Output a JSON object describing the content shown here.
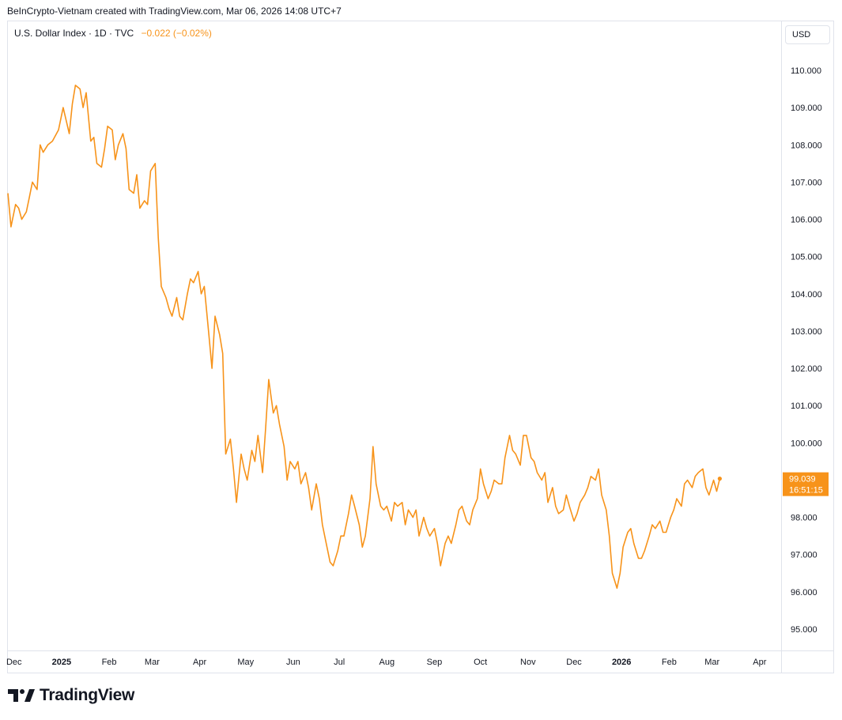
{
  "header": {
    "credit": "BeInCrypto-Vietnam created with TradingView.com, Mar 06, 2026 14:08 UTC+7"
  },
  "legend": {
    "symbol": "U.S. Dollar Index · 1D · TVC",
    "change": "−0.022 (−0.02%)"
  },
  "currency_button": "USD",
  "price_label": {
    "value": "99.039",
    "countdown": "16:51:15",
    "color": "#f7931a"
  },
  "brand": {
    "name": "TradingView",
    "icon": "tradingview-logo-icon"
  },
  "colors": {
    "line": "#f7931a",
    "axis_text": "#131722",
    "border": "#e0e3eb"
  },
  "chart_data": {
    "type": "line",
    "title": "U.S. Dollar Index · 1D · TVC",
    "xlabel": "",
    "ylabel": "",
    "ylim": [
      94.5,
      110.8
    ],
    "xlim": [
      "2024-11-27",
      "2026-04-15"
    ],
    "y_ticks": [
      "95.000",
      "96.000",
      "97.000",
      "98.000",
      "99.000",
      "100.000",
      "101.000",
      "102.000",
      "103.000",
      "104.000",
      "105.000",
      "106.000",
      "107.000",
      "108.000",
      "109.000",
      "110.000"
    ],
    "x_ticks": [
      {
        "date": "2024-12-01",
        "label": "Dec",
        "bold": false
      },
      {
        "date": "2025-01-01",
        "label": "2025",
        "bold": true
      },
      {
        "date": "2025-02-01",
        "label": "Feb",
        "bold": false
      },
      {
        "date": "2025-03-01",
        "label": "Mar",
        "bold": false
      },
      {
        "date": "2025-04-01",
        "label": "Apr",
        "bold": false
      },
      {
        "date": "2025-05-01",
        "label": "May",
        "bold": false
      },
      {
        "date": "2025-06-01",
        "label": "Jun",
        "bold": false
      },
      {
        "date": "2025-07-01",
        "label": "Jul",
        "bold": false
      },
      {
        "date": "2025-08-01",
        "label": "Aug",
        "bold": false
      },
      {
        "date": "2025-09-01",
        "label": "Sep",
        "bold": false
      },
      {
        "date": "2025-10-01",
        "label": "Oct",
        "bold": false
      },
      {
        "date": "2025-11-01",
        "label": "Nov",
        "bold": false
      },
      {
        "date": "2025-12-01",
        "label": "Dec",
        "bold": false
      },
      {
        "date": "2026-01-01",
        "label": "2026",
        "bold": true
      },
      {
        "date": "2026-02-01",
        "label": "Feb",
        "bold": false
      },
      {
        "date": "2026-03-01",
        "label": "Mar",
        "bold": false
      },
      {
        "date": "2026-04-01",
        "label": "Apr",
        "bold": false
      }
    ],
    "grid": false,
    "last_value": 99.039,
    "series": [
      {
        "color": "#f7931a",
        "points": [
          [
            "2024-11-27",
            106.7
          ],
          [
            "2024-11-29",
            105.8
          ],
          [
            "2024-12-02",
            106.4
          ],
          [
            "2024-12-04",
            106.3
          ],
          [
            "2024-12-06",
            106.0
          ],
          [
            "2024-12-09",
            106.2
          ],
          [
            "2024-12-11",
            106.6
          ],
          [
            "2024-12-13",
            107.0
          ],
          [
            "2024-12-16",
            106.8
          ],
          [
            "2024-12-18",
            108.0
          ],
          [
            "2024-12-20",
            107.8
          ],
          [
            "2024-12-23",
            108.0
          ],
          [
            "2024-12-26",
            108.1
          ],
          [
            "2024-12-30",
            108.4
          ],
          [
            "2025-01-02",
            109.0
          ],
          [
            "2025-01-06",
            108.3
          ],
          [
            "2025-01-08",
            109.1
          ],
          [
            "2025-01-10",
            109.6
          ],
          [
            "2025-01-13",
            109.5
          ],
          [
            "2025-01-15",
            109.0
          ],
          [
            "2025-01-17",
            109.4
          ],
          [
            "2025-01-20",
            108.1
          ],
          [
            "2025-01-22",
            108.2
          ],
          [
            "2025-01-24",
            107.5
          ],
          [
            "2025-01-27",
            107.4
          ],
          [
            "2025-01-29",
            107.9
          ],
          [
            "2025-01-31",
            108.5
          ],
          [
            "2025-02-03",
            108.4
          ],
          [
            "2025-02-05",
            107.6
          ],
          [
            "2025-02-07",
            108.0
          ],
          [
            "2025-02-10",
            108.3
          ],
          [
            "2025-02-12",
            107.9
          ],
          [
            "2025-02-14",
            106.8
          ],
          [
            "2025-02-17",
            106.7
          ],
          [
            "2025-02-19",
            107.2
          ],
          [
            "2025-02-21",
            106.3
          ],
          [
            "2025-02-24",
            106.5
          ],
          [
            "2025-02-26",
            106.4
          ],
          [
            "2025-02-28",
            107.3
          ],
          [
            "2025-03-03",
            107.5
          ],
          [
            "2025-03-05",
            105.5
          ],
          [
            "2025-03-07",
            104.2
          ],
          [
            "2025-03-10",
            103.9
          ],
          [
            "2025-03-12",
            103.6
          ],
          [
            "2025-03-14",
            103.4
          ],
          [
            "2025-03-17",
            103.9
          ],
          [
            "2025-03-19",
            103.4
          ],
          [
            "2025-03-21",
            103.3
          ],
          [
            "2025-03-24",
            104.0
          ],
          [
            "2025-03-26",
            104.4
          ],
          [
            "2025-03-28",
            104.3
          ],
          [
            "2025-03-31",
            104.6
          ],
          [
            "2025-04-02",
            104.0
          ],
          [
            "2025-04-04",
            104.2
          ],
          [
            "2025-04-07",
            102.9
          ],
          [
            "2025-04-09",
            102.0
          ],
          [
            "2025-04-11",
            103.4
          ],
          [
            "2025-04-14",
            102.9
          ],
          [
            "2025-04-16",
            102.4
          ],
          [
            "2025-04-18",
            99.7
          ],
          [
            "2025-04-21",
            100.1
          ],
          [
            "2025-04-23",
            99.3
          ],
          [
            "2025-04-25",
            98.4
          ],
          [
            "2025-04-28",
            99.7
          ],
          [
            "2025-04-30",
            99.3
          ],
          [
            "2025-05-02",
            99.0
          ],
          [
            "2025-05-05",
            99.8
          ],
          [
            "2025-05-07",
            99.5
          ],
          [
            "2025-05-09",
            100.2
          ],
          [
            "2025-05-12",
            99.2
          ],
          [
            "2025-05-14",
            100.4
          ],
          [
            "2025-05-16",
            101.7
          ],
          [
            "2025-05-19",
            100.8
          ],
          [
            "2025-05-21",
            101.0
          ],
          [
            "2025-05-23",
            100.5
          ],
          [
            "2025-05-26",
            99.9
          ],
          [
            "2025-05-28",
            99.0
          ],
          [
            "2025-05-30",
            99.5
          ],
          [
            "2025-06-02",
            99.3
          ],
          [
            "2025-06-04",
            99.5
          ],
          [
            "2025-06-06",
            98.9
          ],
          [
            "2025-06-09",
            99.2
          ],
          [
            "2025-06-11",
            98.8
          ],
          [
            "2025-06-13",
            98.2
          ],
          [
            "2025-06-16",
            98.9
          ],
          [
            "2025-06-18",
            98.5
          ],
          [
            "2025-06-20",
            97.8
          ],
          [
            "2025-06-23",
            97.2
          ],
          [
            "2025-06-25",
            96.8
          ],
          [
            "2025-06-27",
            96.7
          ],
          [
            "2025-06-30",
            97.1
          ],
          [
            "2025-07-02",
            97.5
          ],
          [
            "2025-07-04",
            97.5
          ],
          [
            "2025-07-07",
            98.1
          ],
          [
            "2025-07-09",
            98.6
          ],
          [
            "2025-07-11",
            98.3
          ],
          [
            "2025-07-14",
            97.8
          ],
          [
            "2025-07-16",
            97.2
          ],
          [
            "2025-07-18",
            97.5
          ],
          [
            "2025-07-21",
            98.5
          ],
          [
            "2025-07-23",
            99.9
          ],
          [
            "2025-07-25",
            98.9
          ],
          [
            "2025-07-28",
            98.3
          ],
          [
            "2025-07-30",
            98.2
          ],
          [
            "2025-08-01",
            98.3
          ],
          [
            "2025-08-04",
            97.9
          ],
          [
            "2025-08-06",
            98.4
          ],
          [
            "2025-08-08",
            98.3
          ],
          [
            "2025-08-11",
            98.4
          ],
          [
            "2025-08-13",
            97.8
          ],
          [
            "2025-08-15",
            98.2
          ],
          [
            "2025-08-18",
            98.0
          ],
          [
            "2025-08-20",
            98.2
          ],
          [
            "2025-08-22",
            97.5
          ],
          [
            "2025-08-25",
            98.0
          ],
          [
            "2025-08-27",
            97.7
          ],
          [
            "2025-08-29",
            97.5
          ],
          [
            "2025-09-01",
            97.7
          ],
          [
            "2025-09-03",
            97.3
          ],
          [
            "2025-09-05",
            96.7
          ],
          [
            "2025-09-08",
            97.3
          ],
          [
            "2025-09-10",
            97.5
          ],
          [
            "2025-09-12",
            97.3
          ],
          [
            "2025-09-15",
            97.8
          ],
          [
            "2025-09-17",
            98.2
          ],
          [
            "2025-09-19",
            98.3
          ],
          [
            "2025-09-22",
            97.9
          ],
          [
            "2025-09-24",
            97.8
          ],
          [
            "2025-09-26",
            98.2
          ],
          [
            "2025-09-29",
            98.5
          ],
          [
            "2025-10-01",
            99.3
          ],
          [
            "2025-10-03",
            98.9
          ],
          [
            "2025-10-06",
            98.5
          ],
          [
            "2025-10-08",
            98.7
          ],
          [
            "2025-10-10",
            99.0
          ],
          [
            "2025-10-13",
            98.9
          ],
          [
            "2025-10-15",
            98.9
          ],
          [
            "2025-10-17",
            99.6
          ],
          [
            "2025-10-20",
            100.2
          ],
          [
            "2025-10-22",
            99.8
          ],
          [
            "2025-10-24",
            99.7
          ],
          [
            "2025-10-27",
            99.4
          ],
          [
            "2025-10-29",
            100.2
          ],
          [
            "2025-10-31",
            100.2
          ],
          [
            "2025-11-03",
            99.6
          ],
          [
            "2025-11-05",
            99.5
          ],
          [
            "2025-11-07",
            99.2
          ],
          [
            "2025-11-10",
            99.0
          ],
          [
            "2025-11-12",
            99.2
          ],
          [
            "2025-11-14",
            98.4
          ],
          [
            "2025-11-17",
            98.8
          ],
          [
            "2025-11-19",
            98.3
          ],
          [
            "2025-11-21",
            98.1
          ],
          [
            "2025-11-24",
            98.2
          ],
          [
            "2025-11-26",
            98.6
          ],
          [
            "2025-11-28",
            98.3
          ],
          [
            "2025-12-01",
            97.9
          ],
          [
            "2025-12-03",
            98.1
          ],
          [
            "2025-12-05",
            98.4
          ],
          [
            "2025-12-08",
            98.6
          ],
          [
            "2025-12-10",
            98.8
          ],
          [
            "2025-12-12",
            99.1
          ],
          [
            "2025-12-15",
            99.0
          ],
          [
            "2025-12-17",
            99.3
          ],
          [
            "2025-12-19",
            98.6
          ],
          [
            "2025-12-22",
            98.2
          ],
          [
            "2025-12-24",
            97.5
          ],
          [
            "2025-12-26",
            96.5
          ],
          [
            "2025-12-29",
            96.1
          ],
          [
            "2025-12-31",
            96.5
          ],
          [
            "2026-01-02",
            97.2
          ],
          [
            "2026-01-05",
            97.6
          ],
          [
            "2026-01-07",
            97.7
          ],
          [
            "2026-01-09",
            97.3
          ],
          [
            "2026-01-12",
            96.9
          ],
          [
            "2026-01-14",
            96.9
          ],
          [
            "2026-01-16",
            97.1
          ],
          [
            "2026-01-19",
            97.5
          ],
          [
            "2026-01-21",
            97.8
          ],
          [
            "2026-01-23",
            97.7
          ],
          [
            "2026-01-26",
            97.9
          ],
          [
            "2026-01-28",
            97.6
          ],
          [
            "2026-01-30",
            97.6
          ],
          [
            "2026-02-02",
            98.0
          ],
          [
            "2026-02-04",
            98.2
          ],
          [
            "2026-02-06",
            98.5
          ],
          [
            "2026-02-09",
            98.3
          ],
          [
            "2026-02-11",
            98.9
          ],
          [
            "2026-02-13",
            99.0
          ],
          [
            "2026-02-16",
            98.8
          ],
          [
            "2026-02-18",
            99.1
          ],
          [
            "2026-02-20",
            99.2
          ],
          [
            "2026-02-23",
            99.3
          ],
          [
            "2026-02-25",
            98.8
          ],
          [
            "2026-02-27",
            98.6
          ],
          [
            "2026-03-02",
            99.0
          ],
          [
            "2026-03-04",
            98.7
          ],
          [
            "2026-03-06",
            99.039
          ]
        ]
      }
    ]
  }
}
